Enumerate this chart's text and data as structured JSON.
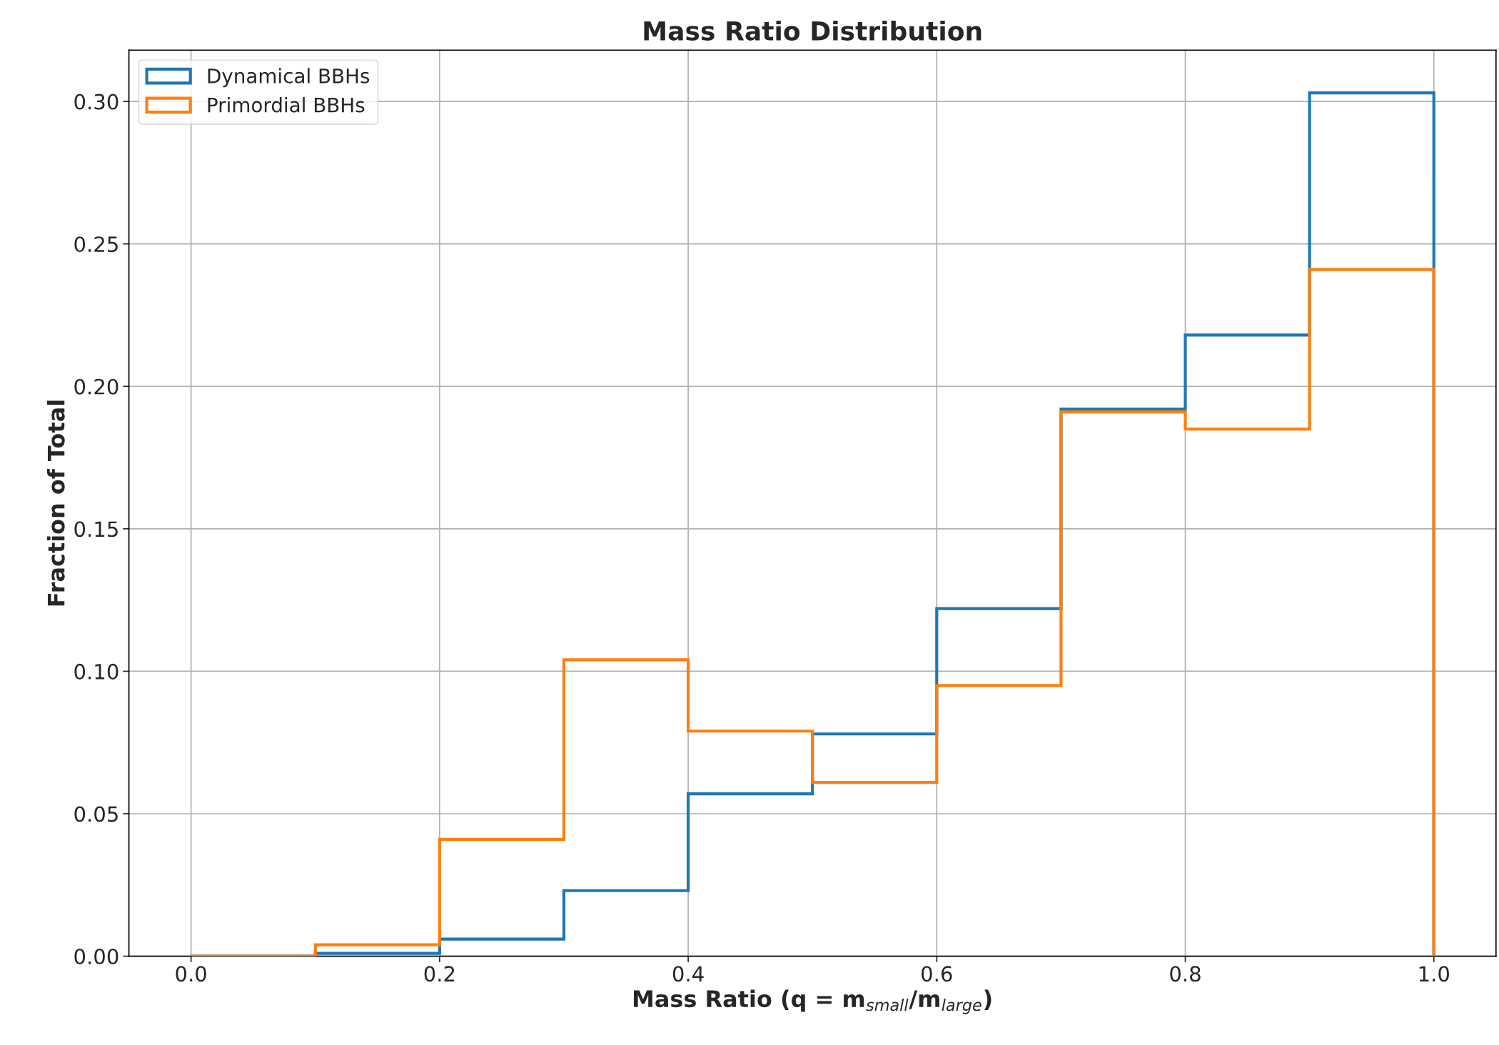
{
  "chart_data": {
    "type": "histogram",
    "title": "Mass Ratio Distribution",
    "xlabel": "Mass Ratio (q = m$_{small}$/m$_{large}$)",
    "ylabel": "Fraction of Total",
    "bins": [
      0.0,
      0.1,
      0.2,
      0.3,
      0.4,
      0.5,
      0.6,
      0.7,
      0.8,
      0.9,
      1.0
    ],
    "series": [
      {
        "name": "Dynamical BBHs",
        "color": "#1f77b4",
        "values": [
          0,
          0.001,
          0.006,
          0.023,
          0.057,
          0.078,
          0.122,
          0.192,
          0.218,
          0.303
        ]
      },
      {
        "name": "Primordial BBHs",
        "color": "#ff7f0e",
        "values": [
          0,
          0.004,
          0.041,
          0.104,
          0.079,
          0.061,
          0.095,
          0.191,
          0.185,
          0.241
        ]
      }
    ],
    "xlim": [
      -0.05,
      1.05
    ],
    "ylim": [
      0,
      0.318
    ],
    "xticks": [
      {
        "value": 0,
        "label": "0.0"
      },
      0.2,
      0.4,
      0.6,
      0.8,
      {
        "value": 1,
        "label": "1.0"
      }
    ],
    "yticks": [
      {
        "value": 0,
        "label": "0.00"
      },
      0.05,
      {
        "value": 0.1,
        "label": "0.10"
      },
      0.15,
      {
        "value": 0.2,
        "label": "0.20"
      },
      0.25,
      {
        "value": 0.3,
        "label": "0.30"
      }
    ],
    "grid": true,
    "legend": "top left"
  }
}
